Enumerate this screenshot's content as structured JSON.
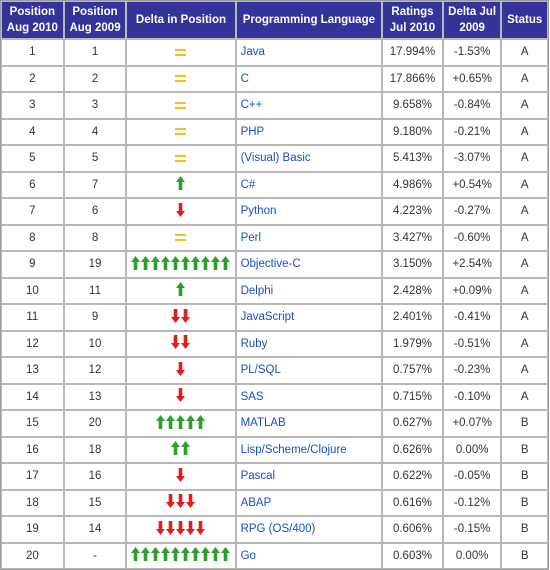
{
  "headers": {
    "pos2010": "Position Aug 2010",
    "pos2009": "Position Aug 2009",
    "delta_pos": "Delta in Position",
    "language": "Programming Language",
    "ratings": "Ratings Jul 2010",
    "delta_rating": "Delta Jul 2009",
    "status": "Status"
  },
  "colors": {
    "header_bg": "#333399",
    "up_arrow": "#2e9e2e",
    "down_arrow": "#e01e1e",
    "equal": "#f2c21b",
    "language_text": "#1a4ec8"
  },
  "rows": [
    {
      "pos2010": "1",
      "pos2009": "1",
      "trend": "equal",
      "arrows": 0,
      "language": "Java",
      "ratings": "17.994%",
      "delta": "-1.53%",
      "status": "A"
    },
    {
      "pos2010": "2",
      "pos2009": "2",
      "trend": "equal",
      "arrows": 0,
      "language": "C",
      "ratings": "17.866%",
      "delta": "+0.65%",
      "status": "A"
    },
    {
      "pos2010": "3",
      "pos2009": "3",
      "trend": "equal",
      "arrows": 0,
      "language": "C++",
      "ratings": "9.658%",
      "delta": "-0.84%",
      "status": "A"
    },
    {
      "pos2010": "4",
      "pos2009": "4",
      "trend": "equal",
      "arrows": 0,
      "language": "PHP",
      "ratings": "9.180%",
      "delta": "-0.21%",
      "status": "A"
    },
    {
      "pos2010": "5",
      "pos2009": "5",
      "trend": "equal",
      "arrows": 0,
      "language": "(Visual) Basic",
      "ratings": "5.413%",
      "delta": "-3.07%",
      "status": "A"
    },
    {
      "pos2010": "6",
      "pos2009": "7",
      "trend": "up",
      "arrows": 1,
      "language": "C#",
      "ratings": "4.986%",
      "delta": "+0.54%",
      "status": "A"
    },
    {
      "pos2010": "7",
      "pos2009": "6",
      "trend": "down",
      "arrows": 1,
      "language": "Python",
      "ratings": "4.223%",
      "delta": "-0.27%",
      "status": "A"
    },
    {
      "pos2010": "8",
      "pos2009": "8",
      "trend": "equal",
      "arrows": 0,
      "language": "Perl",
      "ratings": "3.427%",
      "delta": "-0.60%",
      "status": "A"
    },
    {
      "pos2010": "9",
      "pos2009": "19",
      "trend": "up",
      "arrows": 10,
      "language": "Objective-C",
      "ratings": "3.150%",
      "delta": "+2.54%",
      "status": "A"
    },
    {
      "pos2010": "10",
      "pos2009": "11",
      "trend": "up",
      "arrows": 1,
      "language": "Delphi",
      "ratings": "2.428%",
      "delta": "+0.09%",
      "status": "A"
    },
    {
      "pos2010": "11",
      "pos2009": "9",
      "trend": "down",
      "arrows": 2,
      "language": "JavaScript",
      "ratings": "2.401%",
      "delta": "-0.41%",
      "status": "A"
    },
    {
      "pos2010": "12",
      "pos2009": "10",
      "trend": "down",
      "arrows": 2,
      "language": "Ruby",
      "ratings": "1.979%",
      "delta": "-0.51%",
      "status": "A"
    },
    {
      "pos2010": "13",
      "pos2009": "12",
      "trend": "down",
      "arrows": 1,
      "language": "PL/SQL",
      "ratings": "0.757%",
      "delta": "-0.23%",
      "status": "A"
    },
    {
      "pos2010": "14",
      "pos2009": "13",
      "trend": "down",
      "arrows": 1,
      "language": "SAS",
      "ratings": "0.715%",
      "delta": "-0.10%",
      "status": "A"
    },
    {
      "pos2010": "15",
      "pos2009": "20",
      "trend": "up",
      "arrows": 5,
      "language": "MATLAB",
      "ratings": "0.627%",
      "delta": "+0.07%",
      "status": "B"
    },
    {
      "pos2010": "16",
      "pos2009": "18",
      "trend": "up",
      "arrows": 2,
      "language": "Lisp/Scheme/Clojure",
      "ratings": "0.626%",
      "delta": "0.00%",
      "status": "B"
    },
    {
      "pos2010": "17",
      "pos2009": "16",
      "trend": "down",
      "arrows": 1,
      "language": "Pascal",
      "ratings": "0.622%",
      "delta": "-0.05%",
      "status": "B"
    },
    {
      "pos2010": "18",
      "pos2009": "15",
      "trend": "down",
      "arrows": 3,
      "language": "ABAP",
      "ratings": "0.616%",
      "delta": "-0.12%",
      "status": "B"
    },
    {
      "pos2010": "19",
      "pos2009": "14",
      "trend": "down",
      "arrows": 5,
      "language": "RPG (OS/400)",
      "ratings": "0.606%",
      "delta": "-0.15%",
      "status": "B"
    },
    {
      "pos2010": "20",
      "pos2009": "-",
      "trend": "up",
      "arrows": 10,
      "language": "Go",
      "ratings": "0.603%",
      "delta": "0.00%",
      "status": "B"
    }
  ]
}
